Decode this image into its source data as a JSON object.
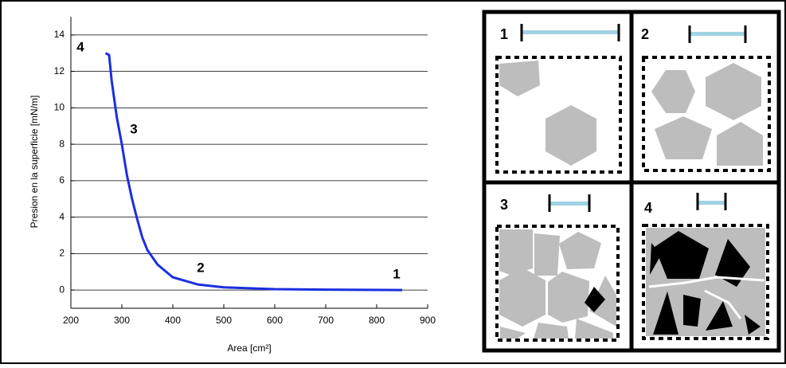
{
  "chart_data": {
    "type": "line",
    "xlabel": "Area [cm²]",
    "ylabel": "Presion en la superficie [mN/m]",
    "x": [
      268,
      275,
      280,
      290,
      300,
      310,
      320,
      330,
      340,
      350,
      370,
      400,
      450,
      500,
      600,
      700,
      850
    ],
    "values": [
      13,
      12.9,
      11.5,
      9.5,
      8,
      6.3,
      5,
      3.9,
      2.9,
      2.2,
      1.4,
      0.7,
      0.3,
      0.15,
      0.05,
      0.02,
      0
    ],
    "color": "#1a2ee0",
    "xlim": [
      200,
      900
    ],
    "xticks": [
      200,
      300,
      400,
      500,
      600,
      700,
      800,
      900
    ],
    "ylim": [
      -1,
      15
    ],
    "yticks": [
      0,
      2,
      4,
      6,
      8,
      10,
      12,
      14
    ],
    "grid": true,
    "annotations": [
      "4",
      "3",
      "2",
      "1"
    ]
  },
  "panels": [
    {
      "label": "1"
    },
    {
      "label": "2"
    },
    {
      "label": "3"
    },
    {
      "label": "4"
    }
  ]
}
